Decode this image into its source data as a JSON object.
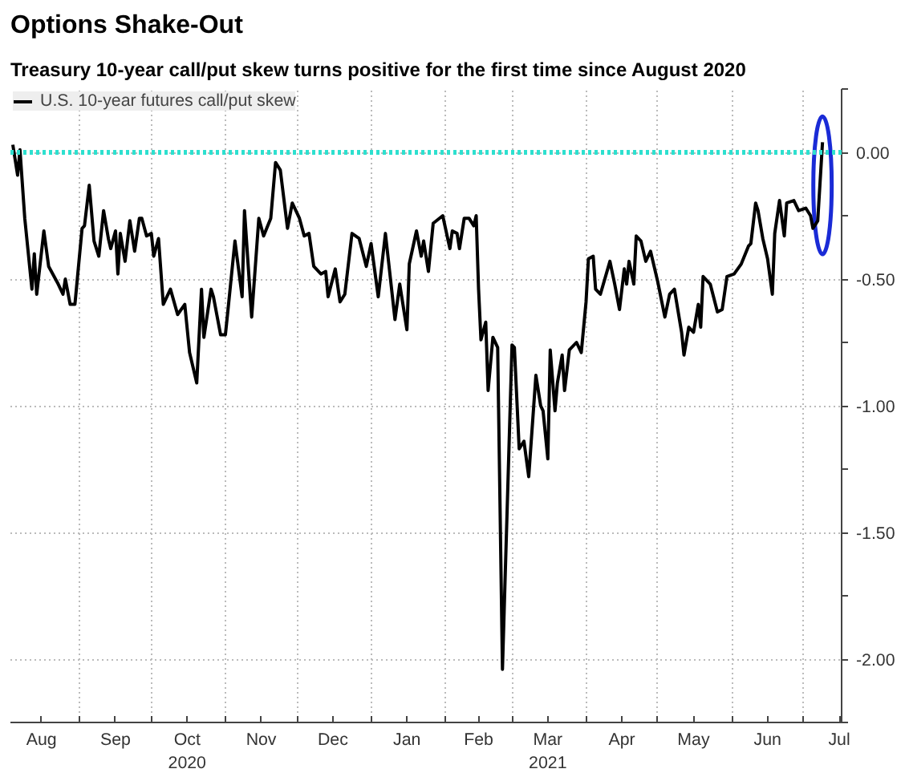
{
  "chart_data": {
    "type": "line",
    "title": "Options Shake-Out",
    "subtitle": "Treasury 10-year call/put skew turns positive for the first time since August 2020",
    "x": [
      "2020-08-04",
      "2020-08-06",
      "2020-08-07",
      "2020-08-09",
      "2020-08-12",
      "2020-08-13",
      "2020-08-14",
      "2020-08-17",
      "2020-08-19",
      "2020-08-23",
      "2020-08-25",
      "2020-08-26",
      "2020-08-28",
      "2020-08-30",
      "2020-09-02",
      "2020-09-03",
      "2020-09-05",
      "2020-09-07",
      "2020-09-09",
      "2020-09-11",
      "2020-09-13",
      "2020-09-14",
      "2020-09-16",
      "2020-09-17",
      "2020-09-18",
      "2020-09-20",
      "2020-09-22",
      "2020-09-24",
      "2020-09-26",
      "2020-09-27",
      "2020-09-29",
      "2020-10-01",
      "2020-10-02",
      "2020-10-04",
      "2020-10-06",
      "2020-10-09",
      "2020-10-12",
      "2020-10-15",
      "2020-10-17",
      "2020-10-20",
      "2020-10-22",
      "2020-10-23",
      "2020-10-26",
      "2020-10-27",
      "2020-10-30",
      "2020-11-01",
      "2020-11-02",
      "2020-11-05",
      "2020-11-08",
      "2020-11-09",
      "2020-11-12",
      "2020-11-15",
      "2020-11-17",
      "2020-11-20",
      "2020-11-22",
      "2020-11-24",
      "2020-11-27",
      "2020-11-29",
      "2020-12-02",
      "2020-12-04",
      "2020-12-06",
      "2020-12-08",
      "2020-12-11",
      "2020-12-13",
      "2020-12-14",
      "2020-12-17",
      "2020-12-19",
      "2020-12-21",
      "2020-12-24",
      "2020-12-27",
      "2020-12-30",
      "2021-01-01",
      "2021-01-04",
      "2021-01-07",
      "2021-01-11",
      "2021-01-13",
      "2021-01-16",
      "2021-01-17",
      "2021-01-20",
      "2021-01-22",
      "2021-01-23",
      "2021-01-25",
      "2021-01-27",
      "2021-01-31",
      "2021-02-03",
      "2021-02-04",
      "2021-02-06",
      "2021-02-07",
      "2021-02-09",
      "2021-02-11",
      "2021-02-13",
      "2021-02-14",
      "2021-02-15",
      "2021-02-16",
      "2021-02-18",
      "2021-02-19",
      "2021-02-21",
      "2021-02-23",
      "2021-02-25",
      "2021-03-01",
      "2021-03-02",
      "2021-03-04",
      "2021-03-06",
      "2021-03-08",
      "2021-03-11",
      "2021-03-13",
      "2021-03-14",
      "2021-03-16",
      "2021-03-17",
      "2021-03-19",
      "2021-03-20",
      "2021-03-22",
      "2021-03-23",
      "2021-03-25",
      "2021-03-28",
      "2021-03-30",
      "2021-04-01",
      "2021-04-02",
      "2021-04-04",
      "2021-04-05",
      "2021-04-07",
      "2021-04-11",
      "2021-04-13",
      "2021-04-15",
      "2021-04-17",
      "2021-04-18",
      "2021-04-19",
      "2021-04-21",
      "2021-04-22",
      "2021-04-24",
      "2021-04-26",
      "2021-04-28",
      "2021-05-01",
      "2021-05-04",
      "2021-05-06",
      "2021-05-08",
      "2021-05-11",
      "2021-05-12",
      "2021-05-14",
      "2021-05-16",
      "2021-05-18",
      "2021-05-19",
      "2021-05-20",
      "2021-05-23",
      "2021-05-26",
      "2021-05-28",
      "2021-05-30",
      "2021-06-02",
      "2021-06-05",
      "2021-06-08",
      "2021-06-09",
      "2021-06-11",
      "2021-06-12",
      "2021-06-14",
      "2021-06-16",
      "2021-06-18",
      "2021-06-19",
      "2021-06-21",
      "2021-06-23",
      "2021-06-24",
      "2021-06-27",
      "2021-06-29",
      "2021-07-02",
      "2021-07-04",
      "2021-07-05",
      "2021-07-07",
      "2021-07-09"
    ],
    "series": [
      {
        "name": "U.S. 10-year futures call/put skew",
        "color": "#000000",
        "values": [
          0.03,
          -0.09,
          0.01,
          -0.26,
          -0.54,
          -0.4,
          -0.56,
          -0.31,
          -0.45,
          -0.52,
          -0.56,
          -0.5,
          -0.6,
          -0.6,
          -0.3,
          -0.29,
          -0.13,
          -0.35,
          -0.41,
          -0.23,
          -0.34,
          -0.38,
          -0.31,
          -0.48,
          -0.32,
          -0.43,
          -0.27,
          -0.39,
          -0.26,
          -0.26,
          -0.33,
          -0.32,
          -0.41,
          -0.34,
          -0.6,
          -0.54,
          -0.64,
          -0.6,
          -0.79,
          -0.91,
          -0.54,
          -0.73,
          -0.54,
          -0.57,
          -0.72,
          -0.72,
          -0.63,
          -0.35,
          -0.57,
          -0.23,
          -0.65,
          -0.26,
          -0.33,
          -0.26,
          -0.04,
          -0.07,
          -0.3,
          -0.2,
          -0.26,
          -0.33,
          -0.32,
          -0.45,
          -0.48,
          -0.47,
          -0.57,
          -0.46,
          -0.59,
          -0.56,
          -0.32,
          -0.34,
          -0.45,
          -0.36,
          -0.57,
          -0.32,
          -0.66,
          -0.52,
          -0.7,
          -0.44,
          -0.31,
          -0.41,
          -0.35,
          -0.47,
          -0.28,
          -0.25,
          -0.38,
          -0.31,
          -0.32,
          -0.38,
          -0.26,
          -0.26,
          -0.29,
          -0.25,
          -0.54,
          -0.74,
          -0.67,
          -0.94,
          -0.73,
          -0.77,
          -2.04,
          -0.76,
          -0.77,
          -1.17,
          -1.14,
          -1.28,
          -0.88,
          -1.0,
          -1.02,
          -1.21,
          -0.78,
          -1.02,
          -0.91,
          -0.8,
          -0.94,
          -0.78,
          -0.75,
          -0.79,
          -0.59,
          -0.42,
          -0.41,
          -0.54,
          -0.56,
          -0.43,
          -0.52,
          -0.62,
          -0.46,
          -0.52,
          -0.43,
          -0.52,
          -0.33,
          -0.35,
          -0.43,
          -0.39,
          -0.51,
          -0.65,
          -0.56,
          -0.54,
          -0.71,
          -0.8,
          -0.69,
          -0.71,
          -0.6,
          -0.69,
          -0.49,
          -0.52,
          -0.63,
          -0.62,
          -0.49,
          -0.48,
          -0.44,
          -0.37,
          -0.36,
          -0.2,
          -0.23,
          -0.34,
          -0.42,
          -0.56,
          -0.32,
          -0.19,
          -0.33,
          -0.2,
          -0.19,
          -0.23,
          -0.22,
          -0.25,
          -0.3,
          -0.27,
          0.04
        ]
      }
    ],
    "xlim": [
      "2020-08-03",
      "2021-07-17"
    ],
    "xticks": [
      {
        "value": "2020-08-16",
        "label": "Aug"
      },
      {
        "value": "2020-09-01",
        "label": null
      },
      {
        "value": "2020-09-16",
        "label": "Sep"
      },
      {
        "value": "2020-10-01",
        "label": null
      },
      {
        "value": "2020-10-16",
        "label": "Oct\n2020"
      },
      {
        "value": "2020-11-01",
        "label": null
      },
      {
        "value": "2020-11-16",
        "label": "Nov"
      },
      {
        "value": "2020-12-01",
        "label": null
      },
      {
        "value": "2020-12-16",
        "label": "Dec"
      },
      {
        "value": "2021-01-01",
        "label": null
      },
      {
        "value": "2021-01-16",
        "label": "Jan"
      },
      {
        "value": "2021-02-01",
        "label": null
      },
      {
        "value": "2021-02-15",
        "label": "Feb"
      },
      {
        "value": "2021-03-01",
        "label": null
      },
      {
        "value": "2021-03-16",
        "label": "Mar\n2021"
      },
      {
        "value": "2021-04-01",
        "label": null
      },
      {
        "value": "2021-04-16",
        "label": "Apr"
      },
      {
        "value": "2021-05-01",
        "label": null
      },
      {
        "value": "2021-05-16",
        "label": "May"
      },
      {
        "value": "2021-06-01",
        "label": null
      },
      {
        "value": "2021-06-16",
        "label": "Jun"
      },
      {
        "value": "2021-07-01",
        "label": null
      },
      {
        "value": "2021-07-16",
        "label": "Jul"
      }
    ],
    "ylim": [
      -2.25,
      0.25
    ],
    "yticks": [
      {
        "value": 0.25,
        "label": null
      },
      {
        "value": 0,
        "label": "0.00"
      },
      {
        "value": -0.25,
        "label": null
      },
      {
        "value": -0.5,
        "label": "-0.50"
      },
      {
        "value": -0.75,
        "label": null
      },
      {
        "value": -1,
        "label": "-1.00"
      },
      {
        "value": -1.25,
        "label": null
      },
      {
        "value": -1.5,
        "label": "-1.50"
      },
      {
        "value": -1.75,
        "label": null
      },
      {
        "value": -2,
        "label": "-2.00"
      },
      {
        "value": -2.25,
        "label": null
      }
    ],
    "ref_lines": [
      {
        "axis": "y",
        "value": 0,
        "color": "#2ee0cf",
        "line_style": "dotted"
      }
    ],
    "grid": true,
    "legend": "top left",
    "line_style": "solid",
    "marker": "none"
  }
}
